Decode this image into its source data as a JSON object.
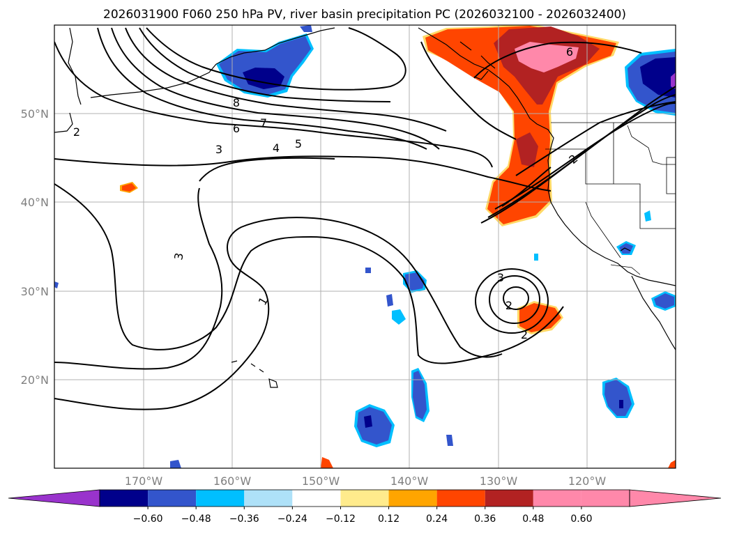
{
  "title": "2026031900 F060 250 hPa PV, river basin precipitation PC (2026032100 - 2026032400)",
  "map": {
    "lat_labels": [
      "50°N",
      "40°N",
      "30°N",
      "20°N"
    ],
    "lon_labels": [
      "170°W",
      "160°W",
      "150°W",
      "140°W",
      "130°W",
      "120°W"
    ]
  },
  "pv_contour_labels": [
    "8",
    "7",
    "6",
    "5",
    "4",
    "3",
    "2",
    "3",
    "1",
    "3",
    "2",
    "2",
    "6",
    "2"
  ],
  "colorbar": {
    "ticks": [
      "−0.60",
      "−0.48",
      "−0.36",
      "−0.24",
      "−0.12",
      "0.12",
      "0.24",
      "0.36",
      "0.48",
      "0.60"
    ],
    "colors": [
      "#9933cc",
      "#00008b",
      "#3355cc",
      "#00bfff",
      "#aee1f8",
      "#ffffff",
      "#ffeb8c",
      "#ffa500",
      "#ff4500",
      "#b22222",
      "#ff88aa",
      "#ff88aa"
    ]
  },
  "chart_data": {
    "type": "map",
    "title": "2026031900 F060 250 hPa PV, river basin precipitation PC (2026032100 - 2026032400)",
    "lon_range": [
      -180,
      -110
    ],
    "lat_range": [
      10,
      60
    ],
    "fields": [
      "250 hPa PV (contours)",
      "river basin precipitation PC (shaded)"
    ],
    "contour_levels_labeled": [
      1,
      2,
      3,
      4,
      5,
      6,
      7,
      8
    ],
    "colorbar_levels": [
      -0.6,
      -0.48,
      -0.36,
      -0.24,
      -0.12,
      0.12,
      0.24,
      0.36,
      0.48,
      0.6
    ]
  }
}
